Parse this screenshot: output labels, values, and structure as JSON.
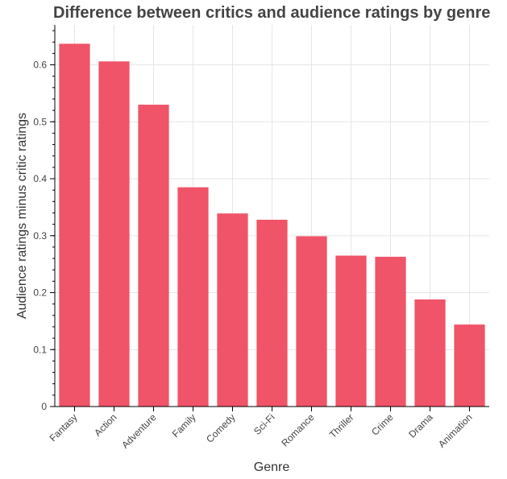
{
  "chart_data": {
    "type": "bar",
    "title": "Difference between critics and audience ratings by genre",
    "xlabel": "Genre",
    "ylabel": "Audience ratings minus critic ratings",
    "categories": [
      "Fantasy",
      "Action",
      "Adventure",
      "Family",
      "Comedy",
      "Sci-Fi",
      "Romance",
      "Thriller",
      "Crime",
      "Drama",
      "Animation"
    ],
    "values": [
      0.637,
      0.606,
      0.53,
      0.385,
      0.339,
      0.328,
      0.299,
      0.265,
      0.263,
      0.188,
      0.144
    ],
    "ylim": [
      0,
      0.67
    ],
    "yticks": [
      0,
      0.1,
      0.2,
      0.3,
      0.4,
      0.5,
      0.6
    ],
    "ytick_labels": [
      "0",
      "0.1",
      "0.2",
      "0.3",
      "0.4",
      "0.5",
      "0.6"
    ],
    "grid": true,
    "bar_color": "#f05468",
    "background": "#ffffff"
  }
}
